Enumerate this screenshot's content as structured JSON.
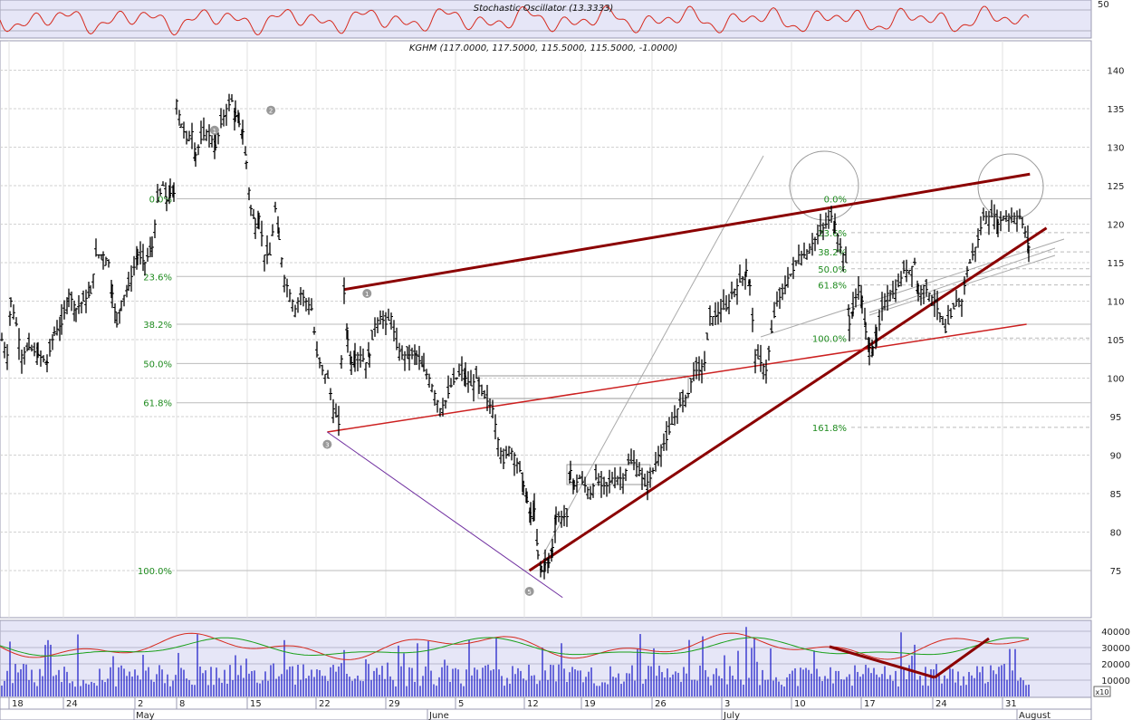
{
  "chart_data": {
    "type": "ohlc",
    "symbol_label": "KGHM (117.0000, 117.5000, 115.5000, 115.5000, -1.0000)",
    "last_bar": {
      "open": 117.0,
      "high": 117.5,
      "low": 115.5,
      "close": 115.5,
      "change": -1.0
    },
    "y_ticks": [
      "140",
      "135",
      "130",
      "125",
      "120",
      "115",
      "110",
      "105",
      "100",
      "95",
      "90",
      "85",
      "80",
      "75"
    ],
    "ylim": [
      70,
      143
    ],
    "x_day_labels": [
      "18",
      "24",
      "2",
      "8",
      "15",
      "22",
      "29",
      "5",
      "12",
      "19",
      "26",
      "3",
      "10",
      "17",
      "24",
      "31"
    ],
    "x_month_labels": [
      "May",
      "June",
      "July",
      "August"
    ],
    "price_path": [
      [
        0,
        105
      ],
      [
        6,
        103
      ],
      [
        10,
        110
      ],
      [
        16,
        107
      ],
      [
        22,
        103
      ],
      [
        30,
        104
      ],
      [
        40,
        103
      ],
      [
        50,
        102
      ],
      [
        58,
        106
      ],
      [
        66,
        107
      ],
      [
        74,
        111
      ],
      [
        82,
        109
      ],
      [
        90,
        110
      ],
      [
        98,
        111
      ],
      [
        104,
        116
      ],
      [
        112,
        116
      ],
      [
        118,
        115
      ],
      [
        122,
        111
      ],
      [
        127,
        107
      ],
      [
        132,
        110
      ],
      [
        140,
        112
      ],
      [
        150,
        116
      ],
      [
        158,
        115
      ],
      [
        166,
        117
      ],
      [
        172,
        123
      ],
      [
        178,
        125
      ],
      [
        182,
        123
      ],
      [
        186,
        124
      ],
      [
        190,
        124
      ],
      [
        193,
        136
      ],
      [
        198,
        133
      ],
      [
        204,
        131
      ],
      [
        210,
        132
      ],
      [
        214,
        129
      ],
      [
        220,
        131
      ],
      [
        226,
        132
      ],
      [
        232,
        131
      ],
      [
        236,
        130
      ],
      [
        242,
        133
      ],
      [
        248,
        135
      ],
      [
        254,
        136
      ],
      [
        258,
        134
      ],
      [
        262,
        133
      ],
      [
        266,
        132
      ],
      [
        270,
        128
      ],
      [
        275,
        122
      ],
      [
        280,
        120
      ],
      [
        284,
        121
      ],
      [
        290,
        116
      ],
      [
        296,
        116
      ],
      [
        302,
        122
      ],
      [
        306,
        118
      ],
      [
        312,
        113
      ],
      [
        318,
        111
      ],
      [
        324,
        109
      ],
      [
        330,
        111
      ],
      [
        336,
        110
      ],
      [
        342,
        109
      ],
      [
        348,
        103
      ],
      [
        354,
        101
      ],
      [
        360,
        100
      ],
      [
        366,
        96
      ],
      [
        372,
        94
      ],
      [
        378,
        111
      ],
      [
        382,
        105
      ],
      [
        386,
        102
      ],
      [
        390,
        103
      ],
      [
        396,
        103
      ],
      [
        402,
        102
      ],
      [
        406,
        103
      ],
      [
        412,
        107
      ],
      [
        418,
        108
      ],
      [
        424,
        107
      ],
      [
        430,
        108
      ],
      [
        436,
        104
      ],
      [
        442,
        103
      ],
      [
        450,
        103
      ],
      [
        458,
        103
      ],
      [
        466,
        101
      ],
      [
        472,
        100
      ],
      [
        478,
        98
      ],
      [
        484,
        96
      ],
      [
        490,
        97
      ],
      [
        496,
        99
      ],
      [
        502,
        100
      ],
      [
        508,
        101
      ],
      [
        512,
        100
      ],
      [
        518,
        99
      ],
      [
        524,
        100
      ],
      [
        530,
        98
      ],
      [
        536,
        97
      ],
      [
        542,
        96
      ],
      [
        548,
        92
      ],
      [
        554,
        89
      ],
      [
        560,
        91
      ],
      [
        566,
        90
      ],
      [
        572,
        88
      ],
      [
        576,
        86
      ],
      [
        580,
        84
      ],
      [
        584,
        82
      ],
      [
        588,
        83
      ],
      [
        592,
        77
      ],
      [
        596,
        75
      ],
      [
        600,
        76
      ],
      [
        604,
        76
      ],
      [
        608,
        78
      ],
      [
        612,
        82
      ],
      [
        618,
        82
      ],
      [
        624,
        82
      ],
      [
        628,
        88
      ],
      [
        632,
        86
      ],
      [
        638,
        87
      ],
      [
        644,
        86
      ],
      [
        650,
        85
      ],
      [
        656,
        87
      ],
      [
        662,
        86
      ],
      [
        668,
        86
      ],
      [
        674,
        87
      ],
      [
        680,
        87
      ],
      [
        686,
        87
      ],
      [
        692,
        89
      ],
      [
        698,
        89
      ],
      [
        704,
        88
      ],
      [
        710,
        86
      ],
      [
        716,
        87
      ],
      [
        722,
        89
      ],
      [
        728,
        91
      ],
      [
        734,
        92
      ],
      [
        740,
        94
      ],
      [
        746,
        96
      ],
      [
        752,
        97
      ],
      [
        758,
        98
      ],
      [
        764,
        101
      ],
      [
        770,
        101
      ],
      [
        776,
        102
      ],
      [
        782,
        108
      ],
      [
        788,
        108
      ],
      [
        794,
        109
      ],
      [
        800,
        109
      ],
      [
        806,
        111
      ],
      [
        812,
        112
      ],
      [
        818,
        113
      ],
      [
        822,
        114
      ],
      [
        826,
        112
      ],
      [
        832,
        103
      ],
      [
        838,
        102
      ],
      [
        844,
        101
      ],
      [
        850,
        106
      ],
      [
        856,
        110
      ],
      [
        862,
        111
      ],
      [
        868,
        113
      ],
      [
        874,
        114
      ],
      [
        880,
        116
      ],
      [
        886,
        116
      ],
      [
        892,
        117
      ],
      [
        898,
        118
      ],
      [
        904,
        119
      ],
      [
        910,
        120
      ],
      [
        916,
        121
      ],
      [
        920,
        120
      ],
      [
        926,
        117
      ],
      [
        932,
        115
      ],
      [
        936,
        107
      ],
      [
        940,
        109
      ],
      [
        946,
        112
      ],
      [
        950,
        110
      ],
      [
        954,
        106
      ],
      [
        958,
        104
      ],
      [
        962,
        104
      ],
      [
        966,
        105
      ],
      [
        972,
        109
      ],
      [
        978,
        111
      ],
      [
        984,
        111
      ],
      [
        990,
        112
      ],
      [
        996,
        114
      ],
      [
        1002,
        114
      ],
      [
        1008,
        115
      ],
      [
        1012,
        111
      ],
      [
        1018,
        112
      ],
      [
        1024,
        111
      ],
      [
        1030,
        110
      ],
      [
        1036,
        108
      ],
      [
        1042,
        106
      ],
      [
        1048,
        108
      ],
      [
        1054,
        110
      ],
      [
        1060,
        110
      ],
      [
        1066,
        114
      ],
      [
        1072,
        116
      ],
      [
        1078,
        118
      ],
      [
        1084,
        121
      ],
      [
        1090,
        121
      ],
      [
        1096,
        121
      ],
      [
        1100,
        120
      ],
      [
        1106,
        121
      ],
      [
        1112,
        121
      ],
      [
        1118,
        121
      ],
      [
        1124,
        121
      ],
      [
        1130,
        119
      ],
      [
        1134,
        117
      ],
      [
        1137,
        115.5
      ]
    ],
    "fibonacci_left": [
      {
        "label": "0.0%",
        "value": 123.3
      },
      {
        "label": "23.6%",
        "value": 113.2
      },
      {
        "label": "38.2%",
        "value": 107.0
      },
      {
        "label": "50.0%",
        "value": 101.9
      },
      {
        "label": "61.8%",
        "value": 96.8
      },
      {
        "label": "100.0%",
        "value": 75.0
      }
    ],
    "fibonacci_right": [
      {
        "label": "0.0%",
        "value": 123.3
      },
      {
        "label": "23.6%",
        "value": 118.9
      },
      {
        "label": "38.2%",
        "value": 116.4
      },
      {
        "label": "50.0%",
        "value": 114.2
      },
      {
        "label": "61.8%",
        "value": 112.1
      },
      {
        "label": "100.0%",
        "value": 105.2
      },
      {
        "label": "161.8%",
        "value": 93.6
      }
    ],
    "wave_labels": [
      {
        "label": "1",
        "x_day": 62,
        "value": 132.2
      },
      {
        "label": "2",
        "x_day": 79,
        "value": 134.8
      },
      {
        "label": "1",
        "x_day": 108,
        "value": 111.0
      },
      {
        "label": "3",
        "x_day": 96,
        "value": 91.4
      },
      {
        "label": "5",
        "x_day": 157,
        "value": 72.3
      }
    ],
    "trendlines": [
      {
        "from": [
          101,
          111.5
        ],
        "to": [
          308,
          126.5
        ],
        "color": "#8b0000",
        "width": 3
      },
      {
        "from": [
          157,
          75
        ],
        "to": [
          313,
          119.5
        ],
        "color": "#8b0000",
        "width": 3
      },
      {
        "from": [
          96,
          93
        ],
        "to": [
          307,
          107
        ],
        "color": "#cc2020",
        "width": 1.5
      },
      {
        "from": [
          96,
          93
        ],
        "to": [
          167,
          71.5
        ],
        "color": "#7030a0",
        "width": 1
      }
    ],
    "oscillator": {
      "title": "Stochastic Oscillator (13.3333)",
      "ticks": [
        "50"
      ],
      "series_color": "#d62a1e"
    },
    "volume": {
      "ticks": [
        "40000",
        "30000",
        "20000",
        "10000"
      ],
      "unit_label": "x10",
      "bar_color": "#1414c8",
      "line_colors": [
        "#d62a1e",
        "#19a019"
      ]
    },
    "colors": {
      "panel_bg": "#e6e6f7",
      "grid": "#c8c8c8",
      "ohlc": "#000000",
      "fib": "#1d8a1d"
    }
  }
}
